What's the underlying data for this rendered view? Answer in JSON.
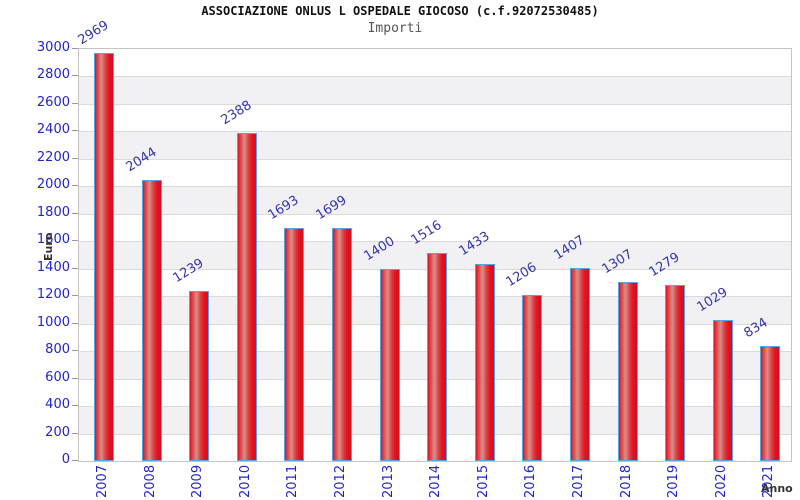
{
  "header": {
    "title": "ASSOCIAZIONE ONLUS L OSPEDALE GIOCOSO (c.f.92072530485)",
    "subtitle": "Importi"
  },
  "chart_data": {
    "type": "bar",
    "title": "ASSOCIAZIONE ONLUS L OSPEDALE GIOCOSO (c.f.92072530485)",
    "subtitle": "Importi",
    "categories": [
      "2007",
      "2008",
      "2009",
      "2010",
      "2011",
      "2012",
      "2013",
      "2014",
      "2015",
      "2016",
      "2017",
      "2018",
      "2019",
      "2020",
      "2021"
    ],
    "values": [
      2969,
      2044,
      1239,
      2388,
      1693,
      1699,
      1400,
      1516,
      1433,
      1206,
      1407,
      1307,
      1279,
      1029,
      834
    ],
    "xlabel": "Anno",
    "ylabel": "Euro",
    "ylim": [
      0,
      3000
    ],
    "ytick_step": 200,
    "grid": true,
    "legend": false,
    "bands_alternating": true
  },
  "colors": {
    "tick_label_blue": "#2323cf",
    "value_label_navy": "#3434a8",
    "title_black": "#111111",
    "subtitle_gray": "#555555",
    "axis_title_dark": "#333333",
    "band_gray": "#f1f1f4",
    "band_white": "#ffffff",
    "gridline": "#dadada",
    "plot_border": "#c4c4c4",
    "tick_mark": "#999999",
    "bar_border_blue": "#5aa2e8",
    "bar_red_edge": "#e01425",
    "bar_red_mid": "#dd4040",
    "bar_highlight": "#d98f8c",
    "bar_red_dark": "#cf1020"
  }
}
